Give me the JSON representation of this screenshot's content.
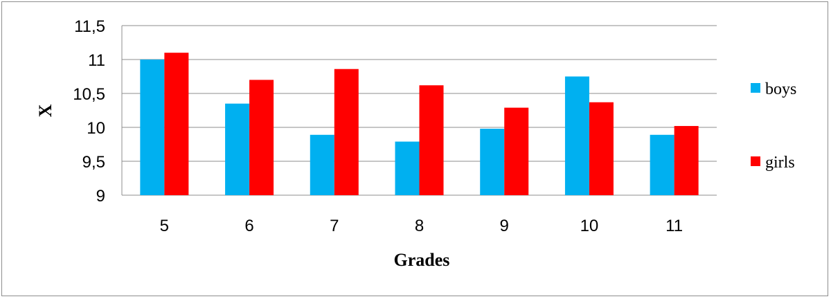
{
  "chart_data": {
    "type": "bar",
    "categories": [
      "5",
      "6",
      "7",
      "8",
      "9",
      "10",
      "11"
    ],
    "series": [
      {
        "name": "boys",
        "values": [
          11.0,
          10.35,
          9.89,
          9.79,
          9.98,
          10.75,
          9.89
        ],
        "color": "#00b0f0"
      },
      {
        "name": "girls",
        "values": [
          11.1,
          10.7,
          10.86,
          10.62,
          10.29,
          10.37,
          10.02
        ],
        "color": "#ff0000"
      }
    ],
    "xlabel": "Grades",
    "ylabel": "X",
    "ylim": [
      9,
      11.5
    ],
    "yticks": [
      "9",
      "9,5",
      "10",
      "10,5",
      "11",
      "11,5"
    ],
    "grid": true,
    "legend_position": "right"
  }
}
